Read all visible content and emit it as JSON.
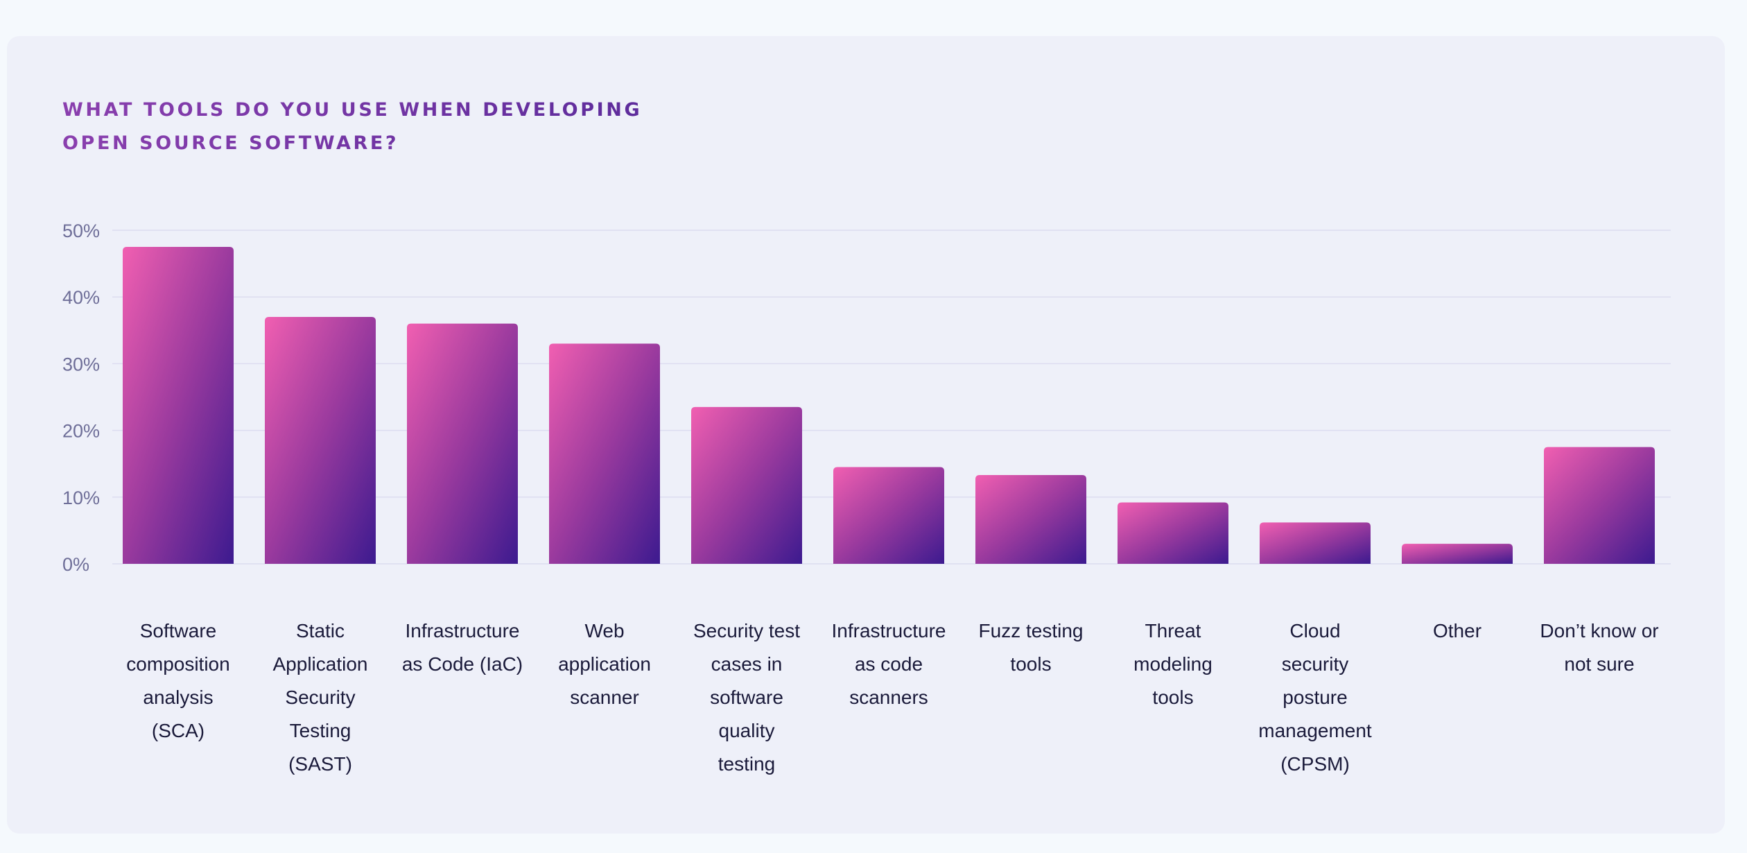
{
  "chart_data": {
    "type": "bar",
    "title_lines": [
      "WHAT TOOLS DO YOU USE WHEN DEVELOPING",
      "OPEN SOURCE SOFTWARE?"
    ],
    "categories": [
      "Software composition analysis (SCA)",
      "Static Application Security Testing (SAST)",
      "Infrastructure as Code (IaC)",
      "Web application scanner",
      "Security test cases in software quality testing",
      "Infrastructure as code scanners",
      "Fuzz testing tools",
      "Threat modeling tools",
      "Cloud security posture management (CPSM)",
      "Other",
      "Don’t know or not sure"
    ],
    "category_label_lines": [
      [
        "Software",
        "composition",
        "analysis",
        "(SCA)"
      ],
      [
        "Static",
        "Application",
        "Security",
        "Testing",
        "(SAST)"
      ],
      [
        "Infrastructure",
        "as Code (IaC)"
      ],
      [
        "Web",
        "application",
        "scanner"
      ],
      [
        "Security test",
        "cases in",
        "software",
        "quality",
        "testing"
      ],
      [
        "Infrastructure",
        "as code",
        "scanners"
      ],
      [
        "Fuzz testing",
        "tools"
      ],
      [
        "Threat",
        "modeling",
        "tools"
      ],
      [
        "Cloud",
        "security",
        "posture",
        "management",
        "(CPSM)"
      ],
      [
        "Other"
      ],
      [
        "Don’t know or",
        "not sure"
      ]
    ],
    "values": [
      47.5,
      37,
      36,
      33,
      23.5,
      14.5,
      13.3,
      9.2,
      6.2,
      3.0,
      17.5
    ],
    "unit": "%",
    "ylim": [
      0,
      50
    ],
    "yticks": [
      0,
      10,
      20,
      30,
      40,
      50
    ],
    "ytick_labels": [
      "0%",
      "10%",
      "20%",
      "30%",
      "40%",
      "50%"
    ],
    "grid": true,
    "legend": "none",
    "colors": {
      "bar_gradient_top": "#f15fb1",
      "bar_gradient_mid": "#9a3a9e",
      "bar_gradient_bottom": "#3c1a8f",
      "title": "#7a35a8",
      "tick_text": "#6e6e98",
      "label_text": "#1a1a3a"
    }
  }
}
